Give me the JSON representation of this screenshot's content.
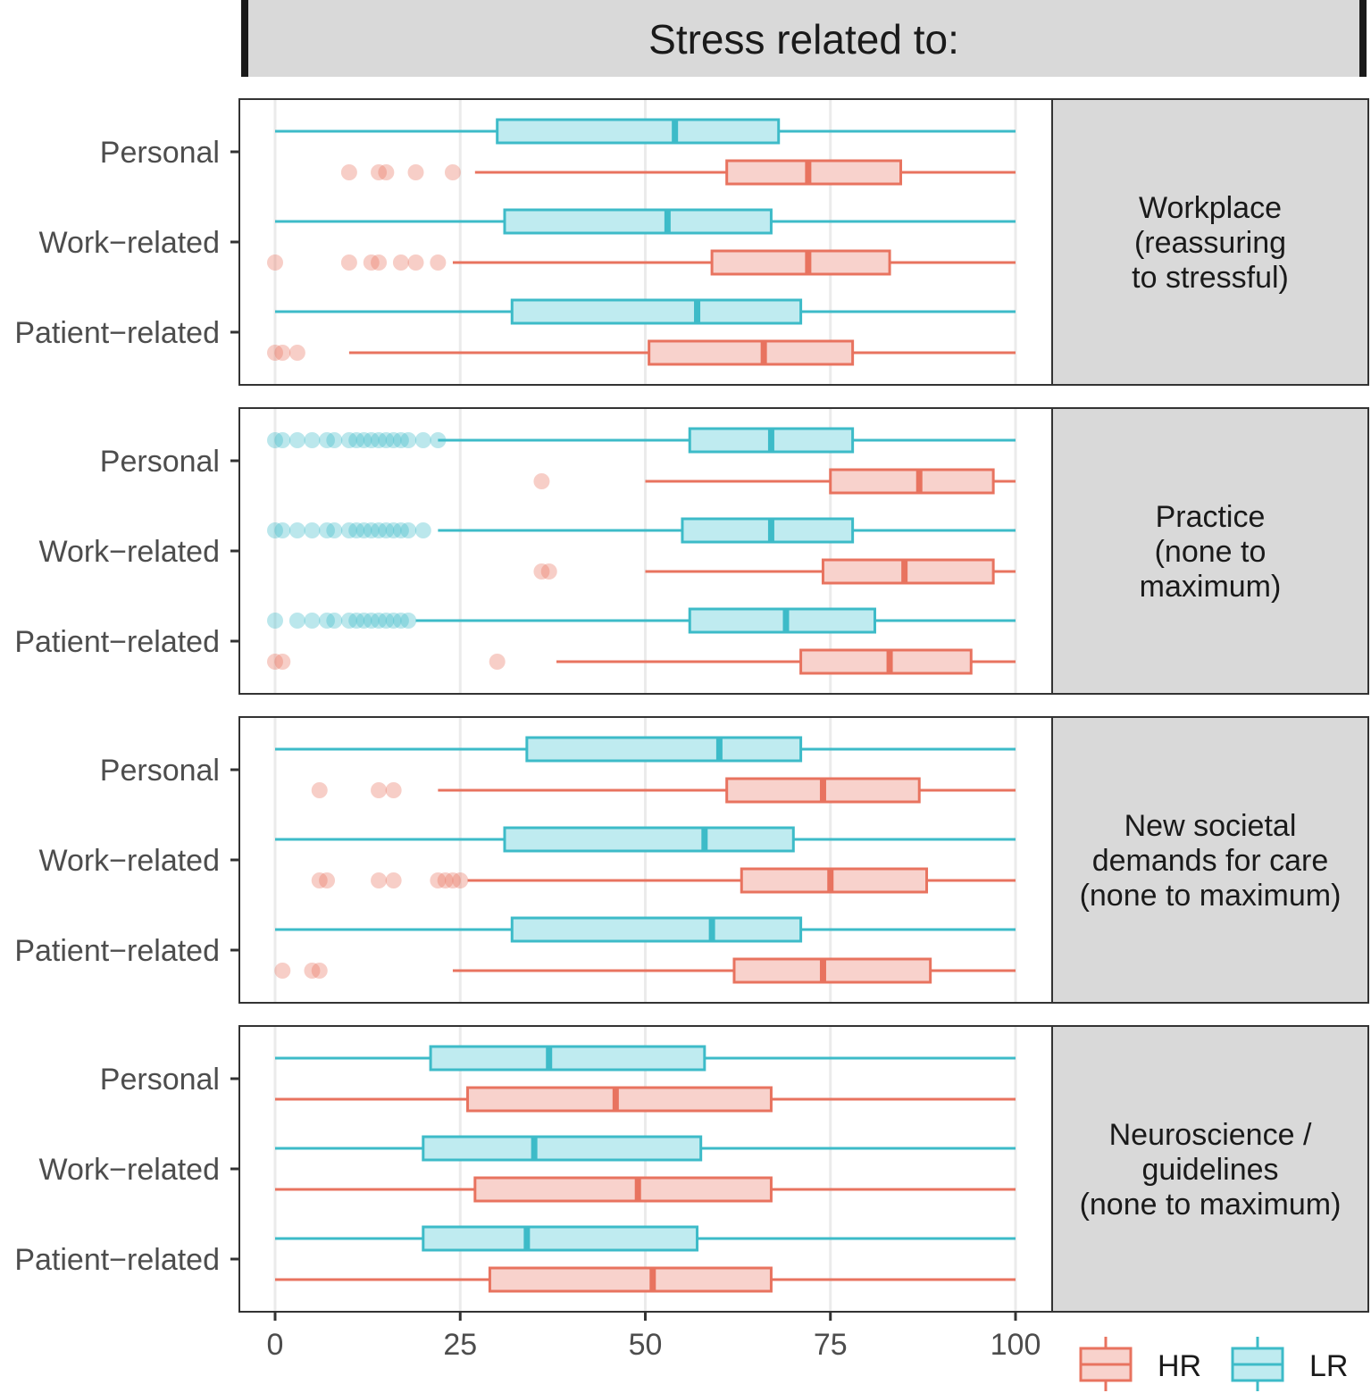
{
  "chart_data": {
    "type": "boxplot",
    "orientation": "horizontal",
    "title": "Stress related to:",
    "x_axis": {
      "range": [
        0,
        100
      ],
      "ticks": [
        0,
        25,
        50,
        75,
        100
      ],
      "label": ""
    },
    "categories": [
      "Personal",
      "Work−related",
      "Patient−related"
    ],
    "groups": [
      {
        "name": "HR",
        "color": "#E8735F",
        "fill": "#F8D2CC"
      },
      {
        "name": "LR",
        "color": "#3DBBC8",
        "fill": "#BFEBF0"
      }
    ],
    "legend": {
      "position": "bottom-right",
      "items": [
        "HR",
        "LR"
      ]
    },
    "facets": [
      {
        "strip": [
          "Workplace",
          "(reassuring",
          "to stressful)"
        ],
        "rows": [
          {
            "category": "Personal",
            "LR": {
              "min": 0,
              "q1": 30,
              "median": 54,
              "q3": 68,
              "max": 100,
              "outliers": []
            },
            "HR": {
              "min": 27,
              "q1": 61,
              "median": 72,
              "q3": 84.5,
              "max": 100,
              "outliers": [
                10,
                14,
                15,
                19,
                24
              ]
            }
          },
          {
            "category": "Work−related",
            "LR": {
              "min": 0,
              "q1": 31,
              "median": 53,
              "q3": 67,
              "max": 100,
              "outliers": []
            },
            "HR": {
              "min": 24,
              "q1": 59,
              "median": 72,
              "q3": 83,
              "max": 100,
              "outliers": [
                0,
                10,
                13,
                14,
                17,
                19,
                22
              ]
            }
          },
          {
            "category": "Patient−related",
            "LR": {
              "min": 0,
              "q1": 32,
              "median": 57,
              "q3": 71,
              "max": 100,
              "outliers": []
            },
            "HR": {
              "min": 10,
              "q1": 50.5,
              "median": 66,
              "q3": 78,
              "max": 100,
              "outliers": [
                0,
                1,
                3
              ]
            }
          }
        ]
      },
      {
        "strip": [
          "Practice",
          "(none to",
          "maximum)"
        ],
        "rows": [
          {
            "category": "Personal",
            "LR": {
              "min": 22,
              "q1": 56,
              "median": 67,
              "q3": 78,
              "max": 100,
              "outliers": [
                0,
                1,
                3,
                5,
                7,
                8,
                10,
                11,
                12,
                13,
                14,
                15,
                16,
                17,
                18,
                20,
                22
              ]
            },
            "HR": {
              "min": 50,
              "q1": 75,
              "median": 87,
              "q3": 97,
              "max": 100,
              "outliers": [
                36
              ]
            }
          },
          {
            "category": "Work−related",
            "LR": {
              "min": 22,
              "q1": 55,
              "median": 67,
              "q3": 78,
              "max": 100,
              "outliers": [
                0,
                1,
                3,
                5,
                7,
                8,
                10,
                11,
                12,
                13,
                14,
                15,
                16,
                17,
                18,
                20
              ]
            },
            "HR": {
              "min": 50,
              "q1": 74,
              "median": 85,
              "q3": 97,
              "max": 100,
              "outliers": [
                36,
                37
              ]
            }
          },
          {
            "category": "Patient−related",
            "LR": {
              "min": 19,
              "q1": 56,
              "median": 69,
              "q3": 81,
              "max": 100,
              "outliers": [
                0,
                3,
                5,
                7,
                8,
                10,
                11,
                12,
                13,
                14,
                15,
                16,
                17,
                18
              ]
            },
            "HR": {
              "min": 38,
              "q1": 71,
              "median": 83,
              "q3": 94,
              "max": 100,
              "outliers": [
                0,
                1,
                30
              ]
            }
          }
        ]
      },
      {
        "strip": [
          "New societal",
          "demands for care",
          "(none to maximum)"
        ],
        "rows": [
          {
            "category": "Personal",
            "LR": {
              "min": 0,
              "q1": 34,
              "median": 60,
              "q3": 71,
              "max": 100,
              "outliers": []
            },
            "HR": {
              "min": 22,
              "q1": 61,
              "median": 74,
              "q3": 87,
              "max": 100,
              "outliers": [
                6,
                14,
                16
              ]
            }
          },
          {
            "category": "Work−related",
            "LR": {
              "min": 0,
              "q1": 31,
              "median": 58,
              "q3": 70,
              "max": 100,
              "outliers": []
            },
            "HR": {
              "min": 26,
              "q1": 63,
              "median": 75,
              "q3": 88,
              "max": 100,
              "outliers": [
                6,
                7,
                14,
                16,
                22,
                23,
                24,
                25
              ]
            }
          },
          {
            "category": "Patient−related",
            "LR": {
              "min": 0,
              "q1": 32,
              "median": 59,
              "q3": 71,
              "max": 100,
              "outliers": []
            },
            "HR": {
              "min": 24,
              "q1": 62,
              "median": 74,
              "q3": 88.5,
              "max": 100,
              "outliers": [
                1,
                5,
                6
              ]
            }
          }
        ]
      },
      {
        "strip": [
          "Neuroscience /",
          "guidelines",
          "(none to maximum)"
        ],
        "rows": [
          {
            "category": "Personal",
            "LR": {
              "min": 0,
              "q1": 21,
              "median": 37,
              "q3": 58,
              "max": 100,
              "outliers": []
            },
            "HR": {
              "min": 0,
              "q1": 26,
              "median": 46,
              "q3": 67,
              "max": 100,
              "outliers": []
            }
          },
          {
            "category": "Work−related",
            "LR": {
              "min": 0,
              "q1": 20,
              "median": 35,
              "q3": 57.5,
              "max": 100,
              "outliers": []
            },
            "HR": {
              "min": 0,
              "q1": 27,
              "median": 49,
              "q3": 67,
              "max": 100,
              "outliers": []
            }
          },
          {
            "category": "Patient−related",
            "LR": {
              "min": 0,
              "q1": 20,
              "median": 34,
              "q3": 57,
              "max": 100,
              "outliers": []
            },
            "HR": {
              "min": 0,
              "q1": 29,
              "median": 51,
              "q3": 67,
              "max": 100,
              "outliers": []
            }
          }
        ]
      }
    ]
  }
}
